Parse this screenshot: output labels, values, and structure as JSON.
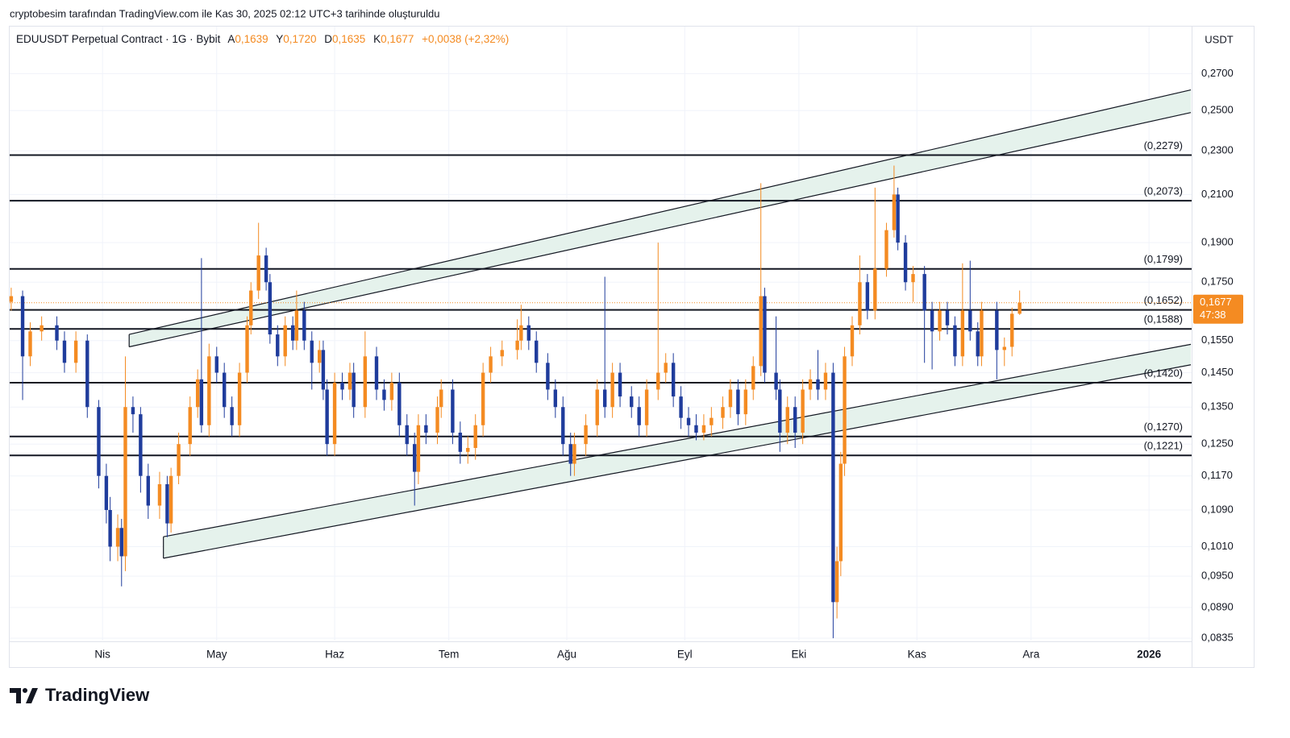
{
  "caption": "cryptobesim tarafından TradingView.com ile Kas 30, 2025 02:12 UTC+3 tarihinde oluşturuldu",
  "header": {
    "symbol": "EDUUSDT Perpetual Contract · 1G · Bybit",
    "ohlc": [
      {
        "key": "A",
        "value": "0,1639"
      },
      {
        "key": "Y",
        "value": "0,1720"
      },
      {
        "key": "D",
        "value": "0,1635"
      },
      {
        "key": "K",
        "value": "0,1677"
      }
    ],
    "change": "+0,0038 (+2,32%)"
  },
  "brand": "TradingView",
  "chart_data": {
    "type": "candlestick",
    "currency": "USDT",
    "log_scale": true,
    "grid": true,
    "up_color": "#f48b22",
    "down_color": "#1f3c9c",
    "xlim": [
      -24.4,
      286.2
    ],
    "ylim": [
      0.0831,
      0.2967
    ],
    "xticks": [
      {
        "value": 0,
        "label": "Nis"
      },
      {
        "value": 30,
        "label": "May"
      },
      {
        "value": 61,
        "label": "Haz"
      },
      {
        "value": 91,
        "label": "Tem"
      },
      {
        "value": 122,
        "label": "Ağu"
      },
      {
        "value": 153,
        "label": "Eyl"
      },
      {
        "value": 183,
        "label": "Eki"
      },
      {
        "value": 214,
        "label": "Kas"
      },
      {
        "value": 244,
        "label": "Ara"
      },
      {
        "value": 275,
        "label": "2026"
      }
    ],
    "yticks": [
      {
        "value": 0.27,
        "label": "0,2700"
      },
      {
        "value": 0.25,
        "label": "0,2500"
      },
      {
        "value": 0.23,
        "label": "0,2300"
      },
      {
        "value": 0.21,
        "label": "0,2100"
      },
      {
        "value": 0.19,
        "label": "0,1900"
      },
      {
        "value": 0.175,
        "label": "0,1750"
      },
      {
        "value": 0.155,
        "label": "0,1550"
      },
      {
        "value": 0.145,
        "label": "0,1450"
      },
      {
        "value": 0.135,
        "label": "0,1350"
      },
      {
        "value": 0.125,
        "label": "0,1250"
      },
      {
        "value": 0.117,
        "label": "0,1170"
      },
      {
        "value": 0.109,
        "label": "0,1090"
      },
      {
        "value": 0.101,
        "label": "0,1010"
      },
      {
        "value": 0.095,
        "label": "0,0950"
      },
      {
        "value": 0.089,
        "label": "0,0890"
      },
      {
        "value": 0.0835,
        "label": "0,0835"
      }
    ],
    "levels": [
      {
        "value": 0.2279,
        "label": "(0,2279)"
      },
      {
        "value": 0.2073,
        "label": "(0,2073)"
      },
      {
        "value": 0.1799,
        "label": "(0,1799)"
      },
      {
        "value": 0.1652,
        "label": "(0,1652)"
      },
      {
        "value": 0.1588,
        "label": "(0,1588)"
      },
      {
        "value": 0.142,
        "label": "(0,1420)"
      },
      {
        "value": 0.127,
        "label": "(0,1270)"
      },
      {
        "value": 0.1221,
        "label": "(0,1221)"
      }
    ],
    "channels": [
      {
        "lines": [
          {
            "x": [
              7,
              286
            ],
            "y": [
              0.157,
              0.261
            ]
          },
          {
            "x": [
              7,
              286
            ],
            "y": [
              0.153,
              0.249
            ]
          }
        ]
      },
      {
        "lines": [
          {
            "x": [
              16,
              286
            ],
            "y": [
              0.1031,
              0.1538
            ]
          },
          {
            "x": [
              16,
              286
            ],
            "y": [
              0.0986,
              0.1474
            ]
          }
        ]
      }
    ],
    "last_price": {
      "value": 0.1677,
      "label": "0,1677",
      "countdown": "47:38"
    },
    "candles": {
      "x": [
        -24,
        -21,
        -19,
        -16,
        -12,
        -10,
        -7,
        -4,
        -1,
        1,
        2,
        4,
        5,
        6,
        8,
        10,
        12,
        15,
        17,
        18,
        20,
        23,
        25,
        26,
        28,
        30,
        32,
        34,
        36,
        38,
        39,
        41,
        43,
        44,
        46,
        48,
        50,
        51,
        53,
        55,
        57,
        58,
        59,
        61,
        63,
        65,
        66,
        69,
        72,
        74,
        76,
        78,
        80,
        82,
        83,
        85,
        88,
        89,
        92,
        94,
        96,
        98,
        100,
        102,
        105,
        109,
        110,
        112,
        114,
        117,
        119,
        121,
        123,
        124,
        127,
        130,
        132,
        134,
        136,
        139,
        141,
        143,
        146,
        148,
        150,
        152,
        154,
        156,
        158,
        160,
        163,
        165,
        167,
        169,
        171,
        173,
        174,
        177,
        178,
        180,
        182,
        184,
        186,
        188,
        190,
        192,
        193,
        194,
        195,
        197,
        199,
        201,
        203,
        206,
        208,
        209,
        211,
        213,
        216,
        218,
        220,
        222,
        224,
        226,
        228,
        230,
        231,
        235,
        237,
        239,
        241
      ],
      "open": [
        0.168,
        0.17,
        0.15,
        0.158,
        0.16,
        0.155,
        0.148,
        0.155,
        0.135,
        0.117,
        0.109,
        0.101,
        0.105,
        0.099,
        0.135,
        0.133,
        0.117,
        0.11,
        0.115,
        0.106,
        0.117,
        0.125,
        0.135,
        0.143,
        0.13,
        0.15,
        0.145,
        0.135,
        0.13,
        0.145,
        0.16,
        0.172,
        0.185,
        0.175,
        0.157,
        0.15,
        0.16,
        0.155,
        0.165,
        0.155,
        0.148,
        0.152,
        0.14,
        0.125,
        0.142,
        0.14,
        0.145,
        0.135,
        0.15,
        0.14,
        0.137,
        0.142,
        0.13,
        0.125,
        0.118,
        0.13,
        0.128,
        0.135,
        0.14,
        0.128,
        0.123,
        0.124,
        0.13,
        0.145,
        0.15,
        0.152,
        0.155,
        0.16,
        0.155,
        0.148,
        0.14,
        0.135,
        0.125,
        0.12,
        0.125,
        0.13,
        0.14,
        0.135,
        0.145,
        0.138,
        0.135,
        0.13,
        0.14,
        0.145,
        0.148,
        0.138,
        0.132,
        0.13,
        0.128,
        0.13,
        0.132,
        0.135,
        0.14,
        0.133,
        0.14,
        0.147,
        0.17,
        0.145,
        0.14,
        0.128,
        0.135,
        0.128,
        0.14,
        0.143,
        0.14,
        0.145,
        0.09,
        0.098,
        0.12,
        0.15,
        0.16,
        0.175,
        0.165,
        0.18,
        0.195,
        0.21,
        0.19,
        0.175,
        0.178,
        0.165,
        0.158,
        0.165,
        0.16,
        0.15,
        0.165,
        0.158,
        0.15,
        0.165,
        0.152,
        0.153,
        0.1639
      ],
      "high": [
        0.173,
        0.172,
        0.161,
        0.163,
        0.163,
        0.158,
        0.158,
        0.157,
        0.137,
        0.12,
        0.112,
        0.108,
        0.107,
        0.15,
        0.138,
        0.135,
        0.12,
        0.118,
        0.117,
        0.119,
        0.128,
        0.138,
        0.146,
        0.184,
        0.154,
        0.153,
        0.148,
        0.138,
        0.148,
        0.163,
        0.175,
        0.198,
        0.188,
        0.178,
        0.16,
        0.163,
        0.163,
        0.172,
        0.168,
        0.158,
        0.155,
        0.155,
        0.143,
        0.145,
        0.145,
        0.148,
        0.148,
        0.158,
        0.153,
        0.143,
        0.145,
        0.145,
        0.133,
        0.128,
        0.133,
        0.133,
        0.138,
        0.143,
        0.143,
        0.131,
        0.127,
        0.133,
        0.148,
        0.153,
        0.155,
        0.162,
        0.167,
        0.163,
        0.158,
        0.151,
        0.143,
        0.138,
        0.128,
        0.128,
        0.133,
        0.143,
        0.177,
        0.148,
        0.148,
        0.141,
        0.138,
        0.143,
        0.19,
        0.151,
        0.151,
        0.141,
        0.135,
        0.133,
        0.133,
        0.135,
        0.138,
        0.143,
        0.143,
        0.143,
        0.15,
        0.215,
        0.173,
        0.163,
        0.143,
        0.138,
        0.138,
        0.143,
        0.146,
        0.152,
        0.148,
        0.148,
        0.101,
        0.123,
        0.153,
        0.163,
        0.185,
        0.178,
        0.213,
        0.198,
        0.223,
        0.213,
        0.193,
        0.181,
        0.181,
        0.168,
        0.168,
        0.168,
        0.163,
        0.182,
        0.183,
        0.161,
        0.168,
        0.168,
        0.156,
        0.166,
        0.172
      ],
      "low": [
        0.165,
        0.137,
        0.147,
        0.155,
        0.152,
        0.145,
        0.145,
        0.132,
        0.114,
        0.106,
        0.098,
        0.098,
        0.093,
        0.096,
        0.128,
        0.113,
        0.107,
        0.107,
        0.103,
        0.104,
        0.115,
        0.122,
        0.132,
        0.128,
        0.127,
        0.142,
        0.132,
        0.127,
        0.127,
        0.142,
        0.157,
        0.169,
        0.172,
        0.154,
        0.147,
        0.147,
        0.152,
        0.152,
        0.152,
        0.14,
        0.145,
        0.137,
        0.122,
        0.122,
        0.137,
        0.137,
        0.132,
        0.132,
        0.137,
        0.134,
        0.134,
        0.127,
        0.122,
        0.11,
        0.115,
        0.125,
        0.125,
        0.132,
        0.125,
        0.12,
        0.12,
        0.121,
        0.127,
        0.142,
        0.147,
        0.149,
        0.152,
        0.152,
        0.145,
        0.137,
        0.132,
        0.122,
        0.117,
        0.117,
        0.122,
        0.127,
        0.132,
        0.132,
        0.135,
        0.132,
        0.127,
        0.127,
        0.137,
        0.142,
        0.135,
        0.129,
        0.127,
        0.126,
        0.126,
        0.127,
        0.129,
        0.132,
        0.13,
        0.13,
        0.137,
        0.144,
        0.142,
        0.137,
        0.123,
        0.125,
        0.124,
        0.125,
        0.137,
        0.137,
        0.137,
        0.0835,
        0.087,
        0.095,
        0.117,
        0.147,
        0.157,
        0.162,
        0.162,
        0.177,
        0.192,
        0.187,
        0.172,
        0.168,
        0.148,
        0.146,
        0.155,
        0.157,
        0.147,
        0.147,
        0.155,
        0.147,
        0.147,
        0.143,
        0.147,
        0.15,
        0.1635
      ],
      "close": [
        0.17,
        0.15,
        0.158,
        0.16,
        0.155,
        0.148,
        0.155,
        0.135,
        0.117,
        0.109,
        0.101,
        0.105,
        0.099,
        0.135,
        0.133,
        0.117,
        0.11,
        0.115,
        0.106,
        0.117,
        0.125,
        0.135,
        0.143,
        0.13,
        0.15,
        0.145,
        0.135,
        0.13,
        0.145,
        0.16,
        0.172,
        0.185,
        0.175,
        0.157,
        0.15,
        0.16,
        0.155,
        0.165,
        0.155,
        0.148,
        0.152,
        0.14,
        0.125,
        0.142,
        0.14,
        0.145,
        0.135,
        0.15,
        0.14,
        0.137,
        0.142,
        0.13,
        0.125,
        0.118,
        0.13,
        0.128,
        0.135,
        0.14,
        0.128,
        0.123,
        0.124,
        0.13,
        0.145,
        0.15,
        0.152,
        0.155,
        0.16,
        0.155,
        0.148,
        0.14,
        0.135,
        0.125,
        0.12,
        0.125,
        0.13,
        0.14,
        0.135,
        0.145,
        0.138,
        0.135,
        0.13,
        0.14,
        0.145,
        0.148,
        0.138,
        0.132,
        0.13,
        0.128,
        0.13,
        0.132,
        0.135,
        0.14,
        0.133,
        0.14,
        0.147,
        0.17,
        0.145,
        0.14,
        0.128,
        0.135,
        0.128,
        0.14,
        0.143,
        0.14,
        0.145,
        0.09,
        0.098,
        0.12,
        0.15,
        0.16,
        0.175,
        0.165,
        0.18,
        0.195,
        0.21,
        0.19,
        0.175,
        0.178,
        0.165,
        0.158,
        0.165,
        0.16,
        0.15,
        0.165,
        0.158,
        0.15,
        0.165,
        0.152,
        0.153,
        0.1639,
        0.1677
      ]
    }
  }
}
